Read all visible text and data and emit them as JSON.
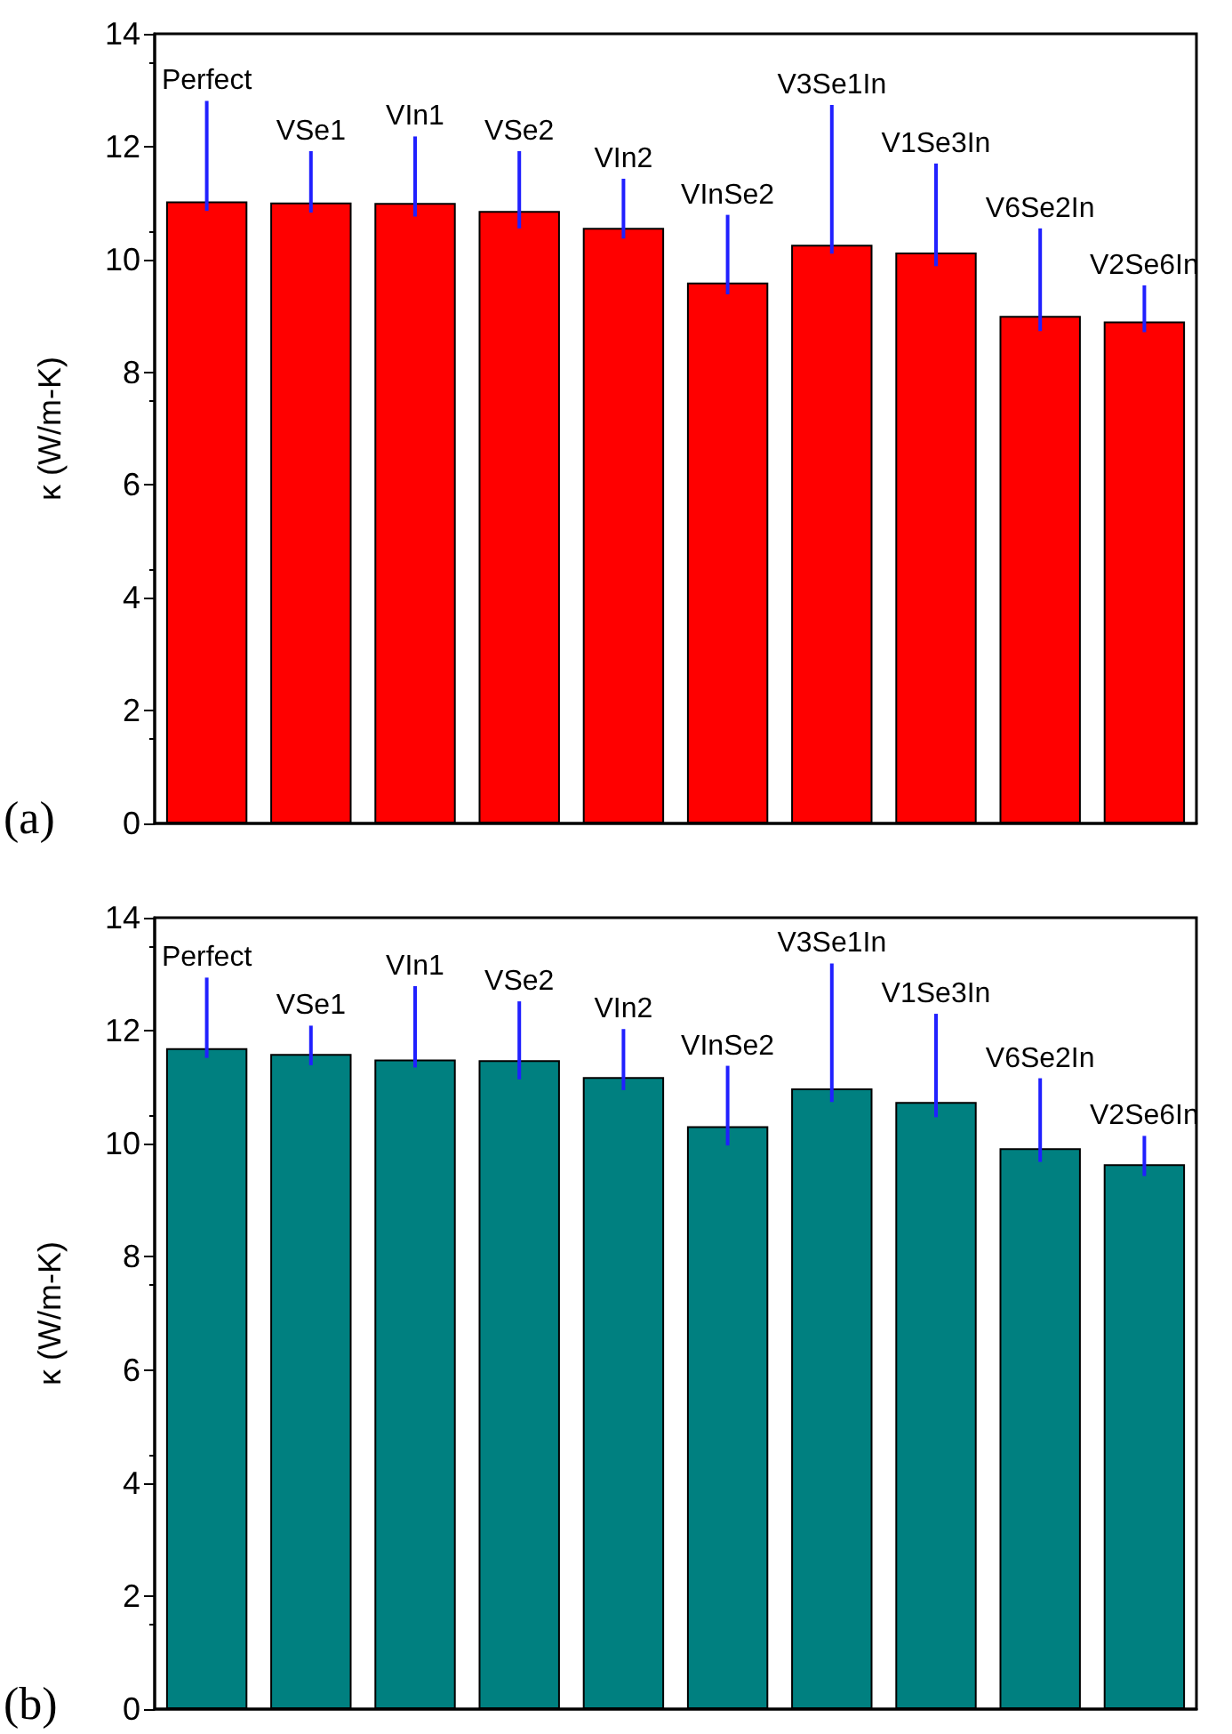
{
  "chart_data": [
    {
      "type": "bar",
      "ylabel": "κ (W/m-K)",
      "annotations": [
        "(a)"
      ],
      "categories": [
        "Perfect",
        "VSe1",
        "VIn1",
        "VSe2",
        "VIn2",
        "VInSe2",
        "V3Se1In",
        "V1Se3In",
        "V6Se2In",
        "V2Se6In"
      ],
      "values": [
        11.03,
        11.01,
        11.0,
        10.86,
        10.56,
        9.59,
        10.26,
        10.12,
        9.0,
        8.9
      ],
      "errors": [
        [
          10.86,
          12.81
        ],
        [
          10.83,
          11.92
        ],
        [
          10.76,
          12.18
        ],
        [
          10.55,
          11.92
        ],
        [
          10.37,
          11.43
        ],
        [
          9.38,
          10.79
        ],
        [
          10.1,
          12.74
        ],
        [
          9.88,
          11.7
        ],
        [
          8.73,
          10.55
        ],
        [
          8.71,
          9.54
        ]
      ],
      "color": "#ff0000",
      "ylim": [
        0,
        14
      ],
      "yticks": [
        0,
        2,
        4,
        6,
        8,
        10,
        12,
        14
      ]
    },
    {
      "type": "bar",
      "ylabel": "κ (W/m-K)",
      "annotations": [
        "(b)"
      ],
      "categories": [
        "Perfect",
        "VSe1",
        "VIn1",
        "VSe2",
        "VIn2",
        "VInSe2",
        "V3Se1In",
        "V1Se3In",
        "V6Se2In",
        "V2Se6In"
      ],
      "values": [
        11.69,
        11.59,
        11.49,
        11.48,
        11.18,
        10.31,
        10.98,
        10.74,
        9.92,
        9.64
      ],
      "errors": [
        [
          11.52,
          12.94
        ],
        [
          11.39,
          12.09
        ],
        [
          11.35,
          12.79
        ],
        [
          11.14,
          12.52
        ],
        [
          10.95,
          12.03
        ],
        [
          9.97,
          11.38
        ],
        [
          10.74,
          13.19
        ],
        [
          10.47,
          12.3
        ],
        [
          9.68,
          11.16
        ],
        [
          9.43,
          10.14
        ]
      ],
      "color": "#008080",
      "ylim": [
        0,
        14
      ],
      "yticks": [
        0,
        2,
        4,
        6,
        8,
        10,
        12,
        14
      ]
    }
  ]
}
